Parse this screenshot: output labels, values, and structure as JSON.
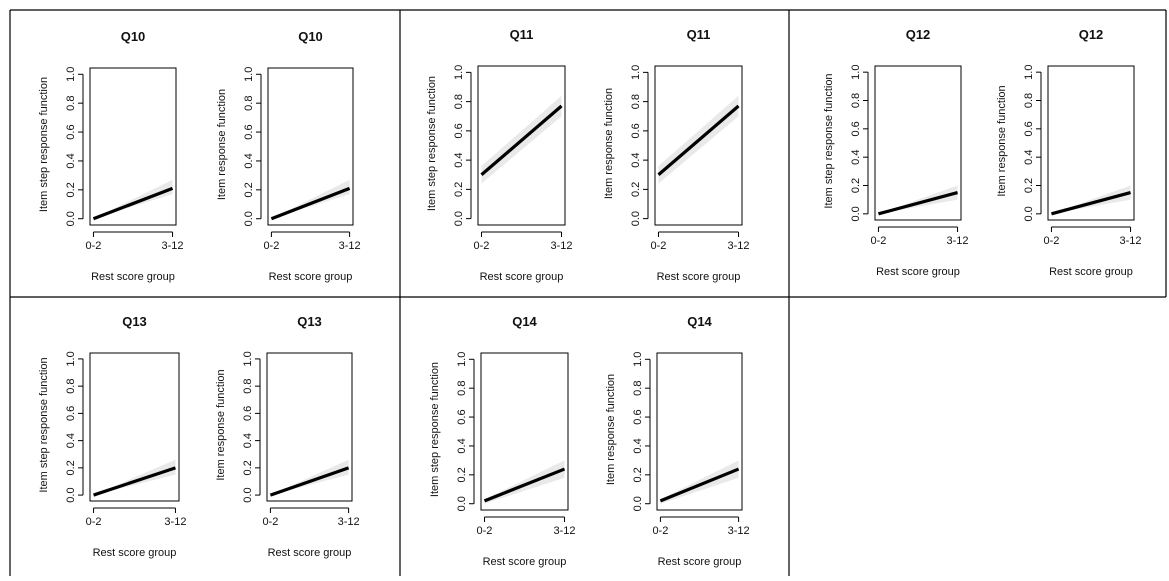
{
  "chart_data": [
    {
      "type": "line",
      "title": "Q10",
      "ylabel": "Item step response function",
      "xlabel": "Rest score group",
      "categories": [
        "0-2",
        "3-12"
      ],
      "yticks": [
        "0.0",
        "0.2",
        "0.4",
        "0.6",
        "0.8",
        "1.0"
      ],
      "ylim": [
        0,
        1
      ],
      "series": [
        {
          "values": [
            0.0,
            0.21
          ],
          "lower": [
            0.0,
            0.17
          ],
          "upper": [
            0.0,
            0.27
          ]
        }
      ]
    },
    {
      "type": "line",
      "title": "Q10",
      "ylabel": "Item response function",
      "xlabel": "Rest score group",
      "categories": [
        "0-2",
        "3-12"
      ],
      "yticks": [
        "0.0",
        "0.2",
        "0.4",
        "0.6",
        "0.8",
        "1.0"
      ],
      "ylim": [
        0,
        1
      ],
      "series": [
        {
          "values": [
            0.0,
            0.21
          ],
          "lower": [
            0.0,
            0.17
          ],
          "upper": [
            0.0,
            0.27
          ]
        }
      ]
    },
    {
      "type": "line",
      "title": "Q11",
      "ylabel": "Item step response function",
      "xlabel": "Rest score group",
      "categories": [
        "0-2",
        "3-12"
      ],
      "yticks": [
        "0.0",
        "0.2",
        "0.4",
        "0.6",
        "0.8",
        "1.0"
      ],
      "ylim": [
        0,
        1
      ],
      "series": [
        {
          "values": [
            0.3,
            0.77
          ],
          "lower": [
            0.24,
            0.7
          ],
          "upper": [
            0.36,
            0.84
          ]
        }
      ]
    },
    {
      "type": "line",
      "title": "Q11",
      "ylabel": "Item response function",
      "xlabel": "Rest score group",
      "categories": [
        "0-2",
        "3-12"
      ],
      "yticks": [
        "0.0",
        "0.2",
        "0.4",
        "0.6",
        "0.8",
        "1.0"
      ],
      "ylim": [
        0,
        1
      ],
      "series": [
        {
          "values": [
            0.3,
            0.77
          ],
          "lower": [
            0.24,
            0.7
          ],
          "upper": [
            0.36,
            0.84
          ]
        }
      ]
    },
    {
      "type": "line",
      "title": "Q12",
      "ylabel": "Item step response function",
      "xlabel": "Rest score group",
      "categories": [
        "0-2",
        "3-12"
      ],
      "yticks": [
        "0.0",
        "0.2",
        "0.4",
        "0.6",
        "0.8",
        "1.0"
      ],
      "ylim": [
        0,
        1
      ],
      "series": [
        {
          "values": [
            0.0,
            0.15
          ],
          "lower": [
            0.0,
            0.1
          ],
          "upper": [
            0.0,
            0.2
          ]
        }
      ]
    },
    {
      "type": "line",
      "title": "Q12",
      "ylabel": "Item response function",
      "xlabel": "Rest score group",
      "categories": [
        "0-2",
        "3-12"
      ],
      "yticks": [
        "0.0",
        "0.2",
        "0.4",
        "0.6",
        "0.8",
        "1.0"
      ],
      "ylim": [
        0,
        1
      ],
      "series": [
        {
          "values": [
            0.0,
            0.15
          ],
          "lower": [
            0.0,
            0.1
          ],
          "upper": [
            0.0,
            0.2
          ]
        }
      ]
    },
    {
      "type": "line",
      "title": "Q13",
      "ylabel": "Item step response function",
      "xlabel": "Rest score group",
      "categories": [
        "0-2",
        "3-12"
      ],
      "yticks": [
        "0.0",
        "0.2",
        "0.4",
        "0.6",
        "0.8",
        "1.0"
      ],
      "ylim": [
        0,
        1
      ],
      "series": [
        {
          "values": [
            0.0,
            0.2
          ],
          "lower": [
            0.0,
            0.15
          ],
          "upper": [
            0.0,
            0.26
          ]
        }
      ]
    },
    {
      "type": "line",
      "title": "Q13",
      "ylabel": "Item response function",
      "xlabel": "Rest score group",
      "categories": [
        "0-2",
        "3-12"
      ],
      "yticks": [
        "0.0",
        "0.2",
        "0.4",
        "0.6",
        "0.8",
        "1.0"
      ],
      "ylim": [
        0,
        1
      ],
      "series": [
        {
          "values": [
            0.0,
            0.2
          ],
          "lower": [
            0.0,
            0.15
          ],
          "upper": [
            0.0,
            0.26
          ]
        }
      ]
    },
    {
      "type": "line",
      "title": "Q14",
      "ylabel": "Item step response function",
      "xlabel": "Rest score group",
      "categories": [
        "0-2",
        "3-12"
      ],
      "yticks": [
        "0.0",
        "0.2",
        "0.4",
        "0.6",
        "0.8",
        "1.0"
      ],
      "ylim": [
        0,
        1
      ],
      "series": [
        {
          "values": [
            0.02,
            0.24
          ],
          "lower": [
            0.0,
            0.18
          ],
          "upper": [
            0.03,
            0.3
          ]
        }
      ]
    },
    {
      "type": "line",
      "title": "Q14",
      "ylabel": "Item response function",
      "xlabel": "Rest score group",
      "categories": [
        "0-2",
        "3-12"
      ],
      "yticks": [
        "0.0",
        "0.2",
        "0.4",
        "0.6",
        "0.8",
        "1.0"
      ],
      "ylim": [
        0,
        1
      ],
      "series": [
        {
          "values": [
            0.02,
            0.24
          ],
          "lower": [
            0.0,
            0.18
          ],
          "upper": [
            0.03,
            0.3
          ]
        }
      ]
    }
  ]
}
